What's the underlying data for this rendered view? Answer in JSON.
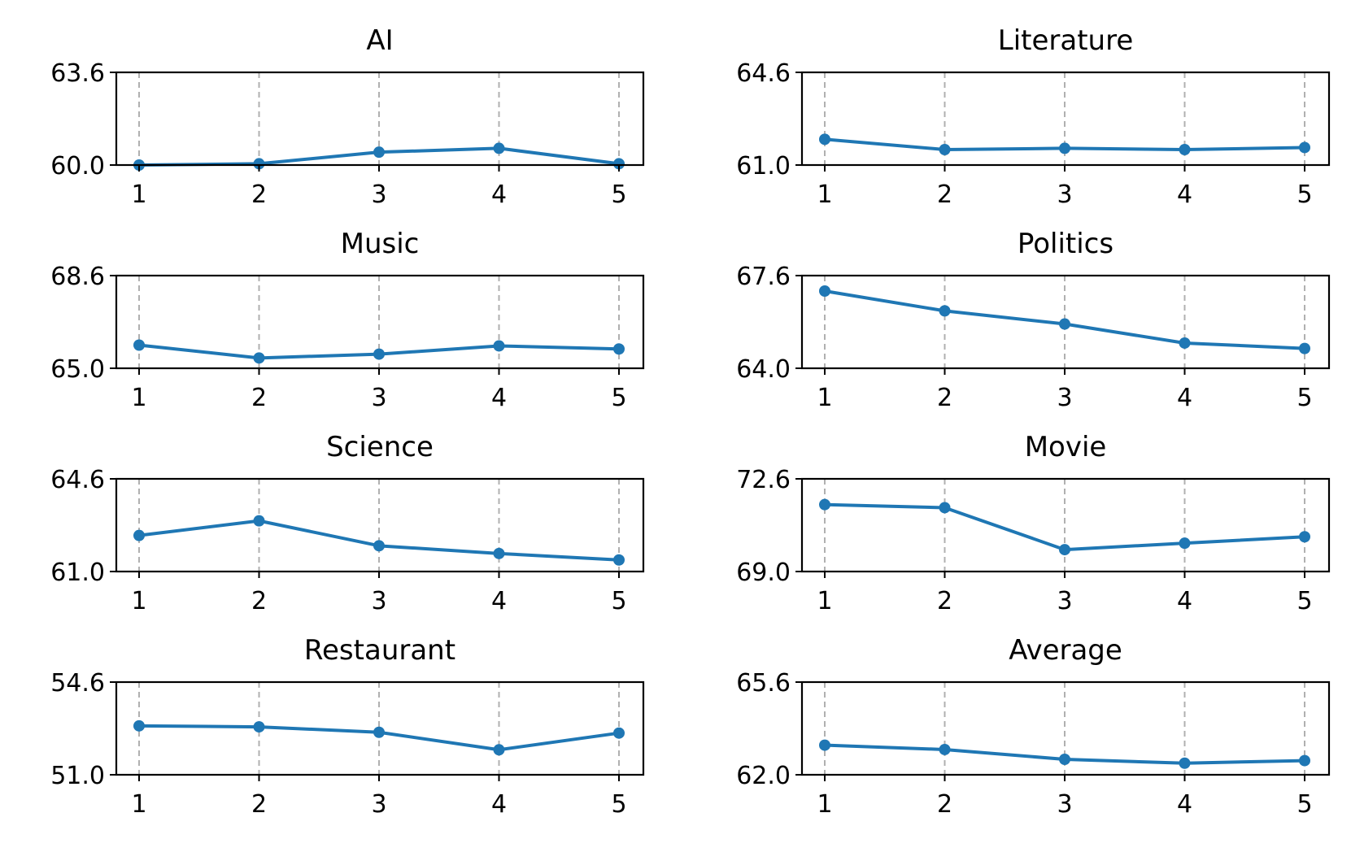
{
  "chart_data": [
    {
      "type": "line",
      "title": "AI",
      "x": [
        1,
        2,
        3,
        4,
        5
      ],
      "values": [
        60.0,
        60.05,
        60.5,
        60.65,
        60.05
      ],
      "ylim": [
        60.0,
        63.6
      ],
      "yticks": [
        "60.0",
        "63.6"
      ],
      "xticks": [
        "1",
        "2",
        "3",
        "4",
        "5"
      ],
      "grid": "vertical-dashed"
    },
    {
      "type": "line",
      "title": "Literature",
      "x": [
        1,
        2,
        3,
        4,
        5
      ],
      "values": [
        62.0,
        61.6,
        61.65,
        61.6,
        61.68
      ],
      "ylim": [
        61.0,
        64.6
      ],
      "yticks": [
        "61.0",
        "64.6"
      ],
      "xticks": [
        "1",
        "2",
        "3",
        "4",
        "5"
      ],
      "grid": "vertical-dashed"
    },
    {
      "type": "line",
      "title": "Music",
      "x": [
        1,
        2,
        3,
        4,
        5
      ],
      "values": [
        65.9,
        65.4,
        65.55,
        65.87,
        65.75
      ],
      "ylim": [
        65.0,
        68.6
      ],
      "yticks": [
        "65.0",
        "68.6"
      ],
      "xticks": [
        "1",
        "2",
        "3",
        "4",
        "5"
      ],
      "grid": "vertical-dashed"
    },
    {
      "type": "line",
      "title": "Politics",
      "x": [
        1,
        2,
        3,
        4,
        5
      ],
      "values": [
        67.0,
        66.23,
        65.72,
        64.98,
        64.77
      ],
      "ylim": [
        64.0,
        67.6
      ],
      "yticks": [
        "64.0",
        "67.6"
      ],
      "xticks": [
        "1",
        "2",
        "3",
        "4",
        "5"
      ],
      "grid": "vertical-dashed"
    },
    {
      "type": "line",
      "title": "Science",
      "x": [
        1,
        2,
        3,
        4,
        5
      ],
      "values": [
        62.4,
        62.97,
        62.0,
        61.7,
        61.45
      ],
      "ylim": [
        61.0,
        64.6
      ],
      "yticks": [
        "61.0",
        "64.6"
      ],
      "xticks": [
        "1",
        "2",
        "3",
        "4",
        "5"
      ],
      "grid": "vertical-dashed"
    },
    {
      "type": "line",
      "title": "Movie",
      "x": [
        1,
        2,
        3,
        4,
        5
      ],
      "values": [
        71.6,
        71.48,
        69.85,
        70.1,
        70.35
      ],
      "ylim": [
        69.0,
        72.6
      ],
      "yticks": [
        "69.0",
        "72.6"
      ],
      "xticks": [
        "1",
        "2",
        "3",
        "4",
        "5"
      ],
      "grid": "vertical-dashed"
    },
    {
      "type": "line",
      "title": "Restaurant",
      "x": [
        1,
        2,
        3,
        4,
        5
      ],
      "values": [
        52.9,
        52.86,
        52.65,
        51.97,
        52.62
      ],
      "ylim": [
        51.0,
        54.6
      ],
      "yticks": [
        "51.0",
        "54.6"
      ],
      "xticks": [
        "1",
        "2",
        "3",
        "4",
        "5"
      ],
      "grid": "vertical-dashed"
    },
    {
      "type": "line",
      "title": "Average",
      "x": [
        1,
        2,
        3,
        4,
        5
      ],
      "values": [
        63.15,
        62.98,
        62.6,
        62.45,
        62.55
      ],
      "ylim": [
        62.0,
        65.6
      ],
      "yticks": [
        "62.0",
        "65.6"
      ],
      "xticks": [
        "1",
        "2",
        "3",
        "4",
        "5"
      ],
      "grid": "vertical-dashed"
    }
  ],
  "colors": {
    "line": "#1f77b4",
    "grid": "#b0b0b0",
    "axes": "#000000"
  }
}
